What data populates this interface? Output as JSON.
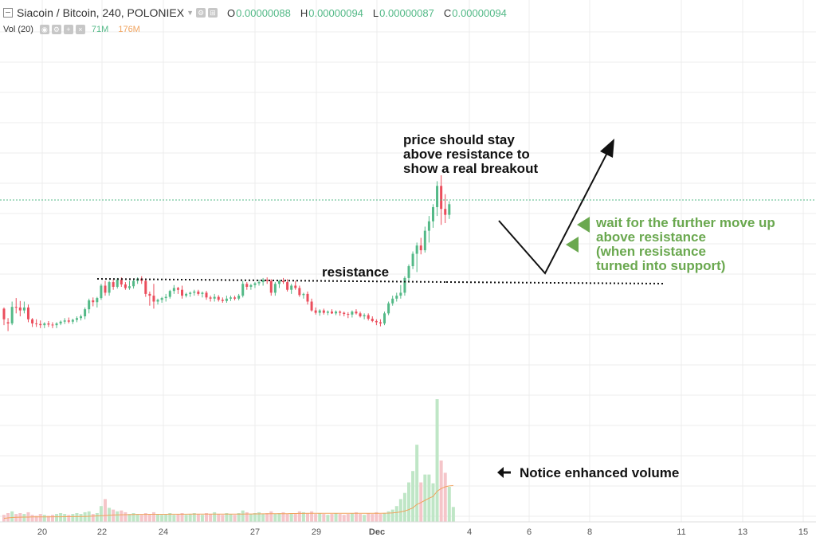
{
  "header": {
    "symbol": "Siacoin / Bitcoin, 240, POLONIEX",
    "ohlc": [
      {
        "key": "O",
        "value": "0.00000088"
      },
      {
        "key": "H",
        "value": "0.00000094"
      },
      {
        "key": "L",
        "value": "0.00000087"
      },
      {
        "key": "C",
        "value": "0.00000094"
      }
    ],
    "vol_label": "Vol (20)",
    "vol_value": "71M",
    "vol_ma": "176M"
  },
  "colors": {
    "up": "#53b987",
    "down": "#eb4d5c",
    "vol_up": "#bfe6c6",
    "vol_down": "#f5c5c9",
    "vol_ma": "#f0a35e",
    "annotation_green": "#6aa84f",
    "grid": "#ececec",
    "last_price_line": "#53b987"
  },
  "chart_data": {
    "type": "candlestick",
    "x_ticks": [
      "20",
      "22",
      "24",
      "27",
      "29",
      "Dec",
      "4",
      "6",
      "8",
      "11",
      "13",
      "15"
    ],
    "grid": true,
    "y_axis_labels_visible": false,
    "candles": [
      [
        0.804,
        0.806,
        0.776,
        0.786
      ],
      [
        0.781,
        0.788,
        0.766,
        0.779
      ],
      [
        0.779,
        0.816,
        0.776,
        0.807
      ],
      [
        0.807,
        0.822,
        0.796,
        0.806
      ],
      [
        0.806,
        0.817,
        0.791,
        0.801
      ],
      [
        0.801,
        0.816,
        0.796,
        0.806
      ],
      [
        0.806,
        0.811,
        0.781,
        0.786
      ],
      [
        0.786,
        0.788,
        0.773,
        0.779
      ],
      [
        0.779,
        0.786,
        0.773,
        0.778
      ],
      [
        0.778,
        0.784,
        0.771,
        0.776
      ],
      [
        0.776,
        0.781,
        0.771,
        0.779
      ],
      [
        0.779,
        0.783,
        0.773,
        0.777
      ],
      [
        0.777,
        0.781,
        0.771,
        0.776
      ],
      [
        0.776,
        0.781,
        0.771,
        0.779
      ],
      [
        0.779,
        0.784,
        0.776,
        0.782
      ],
      [
        0.782,
        0.788,
        0.778,
        0.784
      ],
      [
        0.784,
        0.789,
        0.779,
        0.782
      ],
      [
        0.782,
        0.787,
        0.778,
        0.785
      ],
      [
        0.785,
        0.791,
        0.781,
        0.788
      ],
      [
        0.788,
        0.794,
        0.784,
        0.791
      ],
      [
        0.791,
        0.806,
        0.786,
        0.803
      ],
      [
        0.803,
        0.821,
        0.796,
        0.818
      ],
      [
        0.818,
        0.823,
        0.808,
        0.815
      ],
      [
        0.815,
        0.824,
        0.806,
        0.822
      ],
      [
        0.822,
        0.846,
        0.819,
        0.843
      ],
      [
        0.843,
        0.851,
        0.826,
        0.831
      ],
      [
        0.831,
        0.851,
        0.826,
        0.849
      ],
      [
        0.849,
        0.853,
        0.836,
        0.841
      ],
      [
        0.841,
        0.856,
        0.838,
        0.853
      ],
      [
        0.853,
        0.857,
        0.841,
        0.845
      ],
      [
        0.845,
        0.849,
        0.836,
        0.839
      ],
      [
        0.839,
        0.851,
        0.836,
        0.842
      ],
      [
        0.842,
        0.853,
        0.838,
        0.851
      ],
      [
        0.851,
        0.857,
        0.846,
        0.855
      ],
      [
        0.855,
        0.859,
        0.846,
        0.851
      ],
      [
        0.851,
        0.854,
        0.824,
        0.829
      ],
      [
        0.829,
        0.833,
        0.809,
        0.826
      ],
      [
        0.826,
        0.846,
        0.804,
        0.816
      ],
      [
        0.816,
        0.821,
        0.811,
        0.819
      ],
      [
        0.819,
        0.824,
        0.814,
        0.822
      ],
      [
        0.822,
        0.829,
        0.816,
        0.824
      ],
      [
        0.824,
        0.836,
        0.821,
        0.834
      ],
      [
        0.834,
        0.844,
        0.829,
        0.839
      ],
      [
        0.839,
        0.841,
        0.829,
        0.836
      ],
      [
        0.836,
        0.843,
        0.821,
        0.826
      ],
      [
        0.826,
        0.831,
        0.823,
        0.829
      ],
      [
        0.829,
        0.833,
        0.824,
        0.831
      ],
      [
        0.831,
        0.836,
        0.826,
        0.833
      ],
      [
        0.833,
        0.836,
        0.826,
        0.829
      ],
      [
        0.829,
        0.833,
        0.823,
        0.831
      ],
      [
        0.831,
        0.834,
        0.819,
        0.823
      ],
      [
        0.823,
        0.826,
        0.816,
        0.821
      ],
      [
        0.821,
        0.829,
        0.816,
        0.824
      ],
      [
        0.824,
        0.827,
        0.816,
        0.819
      ],
      [
        0.819,
        0.823,
        0.814,
        0.817
      ],
      [
        0.817,
        0.826,
        0.814,
        0.821
      ],
      [
        0.821,
        0.826,
        0.817,
        0.823
      ],
      [
        0.823,
        0.826,
        0.818,
        0.821
      ],
      [
        0.821,
        0.829,
        0.818,
        0.826
      ],
      [
        0.826,
        0.851,
        0.823,
        0.846
      ],
      [
        0.846,
        0.849,
        0.836,
        0.841
      ],
      [
        0.841,
        0.846,
        0.836,
        0.844
      ],
      [
        0.844,
        0.849,
        0.839,
        0.847
      ],
      [
        0.847,
        0.853,
        0.843,
        0.849
      ],
      [
        0.849,
        0.856,
        0.843,
        0.853
      ],
      [
        0.853,
        0.857,
        0.846,
        0.851
      ],
      [
        0.851,
        0.854,
        0.826,
        0.831
      ],
      [
        0.831,
        0.849,
        0.826,
        0.846
      ],
      [
        0.846,
        0.853,
        0.839,
        0.851
      ],
      [
        0.851,
        0.856,
        0.846,
        0.849
      ],
      [
        0.849,
        0.854,
        0.833,
        0.836
      ],
      [
        0.836,
        0.846,
        0.829,
        0.843
      ],
      [
        0.843,
        0.851,
        0.836,
        0.839
      ],
      [
        0.839,
        0.843,
        0.824,
        0.827
      ],
      [
        0.827,
        0.831,
        0.821,
        0.829
      ],
      [
        0.829,
        0.833,
        0.811,
        0.816
      ],
      [
        0.816,
        0.821,
        0.799,
        0.801
      ],
      [
        0.801,
        0.806,
        0.794,
        0.797
      ],
      [
        0.797,
        0.803,
        0.792,
        0.801
      ],
      [
        0.801,
        0.804,
        0.794,
        0.797
      ],
      [
        0.797,
        0.801,
        0.793,
        0.799
      ],
      [
        0.799,
        0.803,
        0.795,
        0.796
      ],
      [
        0.796,
        0.801,
        0.793,
        0.799
      ],
      [
        0.799,
        0.801,
        0.792,
        0.797
      ],
      [
        0.797,
        0.799,
        0.791,
        0.795
      ],
      [
        0.795,
        0.798,
        0.788,
        0.794
      ],
      [
        0.794,
        0.801,
        0.789,
        0.799
      ],
      [
        0.799,
        0.803,
        0.794,
        0.796
      ],
      [
        0.796,
        0.799,
        0.789,
        0.791
      ],
      [
        0.791,
        0.796,
        0.786,
        0.793
      ],
      [
        0.793,
        0.796,
        0.784,
        0.787
      ],
      [
        0.787,
        0.791,
        0.781,
        0.783
      ],
      [
        0.783,
        0.786,
        0.776,
        0.781
      ],
      [
        0.781,
        0.786,
        0.774,
        0.779
      ],
      [
        0.779,
        0.799,
        0.776,
        0.796
      ],
      [
        0.796,
        0.816,
        0.793,
        0.813
      ],
      [
        0.813,
        0.826,
        0.809,
        0.821
      ],
      [
        0.821,
        0.831,
        0.816,
        0.826
      ],
      [
        0.826,
        0.844,
        0.821,
        0.831
      ],
      [
        0.831,
        0.859,
        0.826,
        0.856
      ],
      [
        0.856,
        0.879,
        0.851,
        0.876
      ],
      [
        0.876,
        0.901,
        0.871,
        0.897
      ],
      [
        0.897,
        0.916,
        0.866,
        0.911
      ],
      [
        0.911,
        0.924,
        0.896,
        0.903
      ],
      [
        0.903,
        0.943,
        0.899,
        0.936
      ],
      [
        0.936,
        0.961,
        0.916,
        0.952
      ],
      [
        0.952,
        0.981,
        0.941,
        0.976
      ],
      [
        0.976,
        1.02,
        0.961,
        1.012
      ],
      [
        1.012,
        1.03,
        0.946,
        0.973
      ],
      [
        0.973,
        0.998,
        0.949,
        0.963
      ],
      [
        0.963,
        0.986,
        0.956,
        0.981
      ]
    ],
    "volume": [
      8,
      10,
      12,
      9,
      10,
      9,
      11,
      8,
      7,
      9,
      8,
      7,
      8,
      9,
      10,
      9,
      8,
      9,
      10,
      9,
      11,
      12,
      9,
      10,
      18,
      26,
      16,
      14,
      12,
      13,
      11,
      9,
      10,
      9,
      8,
      10,
      9,
      11,
      9,
      8,
      9,
      10,
      8,
      9,
      10,
      8,
      9,
      10,
      9,
      8,
      10,
      9,
      11,
      9,
      8,
      10,
      9,
      8,
      10,
      13,
      11,
      9,
      10,
      11,
      9,
      10,
      12,
      9,
      10,
      11,
      9,
      10,
      9,
      12,
      11,
      10,
      12,
      9,
      10,
      9,
      8,
      9,
      10,
      9,
      8,
      9,
      10,
      11,
      9,
      8,
      10,
      9,
      11,
      9,
      10,
      12,
      14,
      18,
      26,
      33,
      45,
      58,
      88,
      45,
      54,
      54,
      44,
      140,
      70,
      56,
      40,
      17
    ],
    "volume_ma": [
      4,
      4.5,
      5,
      5.2,
      5.4,
      5.5,
      5.5,
      5.6,
      5.6,
      5.7,
      5.7,
      5.7,
      5.8,
      5.8,
      5.8,
      5.9,
      5.9,
      6,
      6,
      6.1,
      6.2,
      6.4,
      6.6,
      6.8,
      7,
      7.3,
      7.6,
      7.8,
      8,
      8.1,
      8.2,
      8.3,
      8.4,
      8.5,
      8.5,
      8.5,
      8.6,
      8.6,
      8.6,
      8.6,
      8.6,
      8.7,
      8.7,
      8.7,
      8.7,
      8.7,
      8.8,
      8.8,
      8.8,
      8.8,
      8.8,
      8.8,
      8.8,
      8.8,
      8.8,
      8.8,
      8.8,
      8.8,
      8.8,
      8.9,
      9,
      9,
      9.1,
      9.1,
      9.2,
      9.2,
      9.3,
      9.3,
      9.4,
      9.4,
      9.4,
      9.5,
      9.5,
      9.6,
      9.6,
      9.7,
      9.7,
      9.7,
      9.8,
      9.8,
      9.8,
      9.8,
      9.8,
      9.8,
      9.8,
      9.8,
      9.8,
      9.8,
      9.8,
      9.8,
      9.8,
      9.8,
      9.8,
      9.8,
      9.9,
      10,
      10.3,
      10.7,
      11.4,
      12.4,
      14,
      16,
      20,
      22,
      24.5,
      27,
      29,
      35,
      38,
      40,
      41,
      41.5
    ]
  },
  "annotations": {
    "resistance_label": "resistance",
    "top_note": [
      "price should stay",
      "above resistance to",
      "show a real breakout"
    ],
    "green_note": [
      "wait for the further move up",
      "above resistance",
      "(when resistance",
      "turned into support)"
    ],
    "volume_note": "Notice enhanced volume"
  }
}
